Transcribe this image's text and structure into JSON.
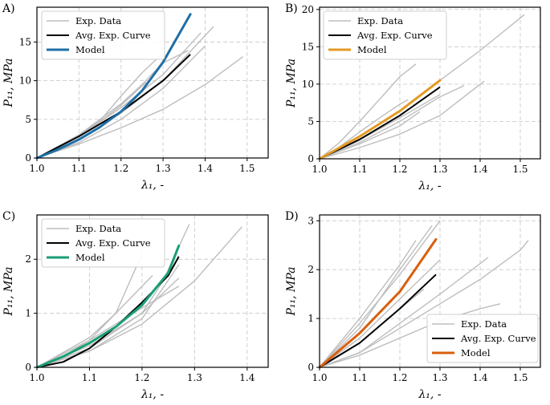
{
  "chart_data": [
    {
      "type": "line",
      "panel_label": "A)",
      "xlabel": "λ₁, -",
      "ylabel": "P₁₁, MPa",
      "xlim": [
        1.0,
        1.55
      ],
      "ylim": [
        0,
        19.5
      ],
      "xticks": [
        1.0,
        1.1,
        1.2,
        1.3,
        1.4,
        1.5
      ],
      "xtick_labels": [
        "1.0",
        "1.1",
        "1.2",
        "1.3",
        "1.4",
        "1.5"
      ],
      "yticks": [
        0,
        5,
        10,
        15
      ],
      "ytick_labels": [
        "0",
        "5",
        "10",
        "15"
      ],
      "grid": true,
      "legend_position": "top-left",
      "legend": [
        "Exp. Data",
        "Avg. Exp. Curve",
        "Model"
      ],
      "colors": {
        "exp": "#bdbdbd",
        "avg": "#000000",
        "model": "#1f6fa6"
      },
      "exp_series": [
        {
          "x": [
            1.0,
            1.1,
            1.2,
            1.3,
            1.4,
            1.49
          ],
          "y": [
            0,
            1.8,
            3.9,
            6.3,
            9.5,
            13.1
          ]
        },
        {
          "x": [
            1.0,
            1.1,
            1.2,
            1.3,
            1.42
          ],
          "y": [
            0,
            2.4,
            5.8,
            10.0,
            17.0
          ]
        },
        {
          "x": [
            1.0,
            1.1,
            1.2,
            1.3,
            1.39
          ],
          "y": [
            0,
            2.8,
            6.5,
            10.8,
            16.2
          ]
        },
        {
          "x": [
            1.0,
            1.08,
            1.15,
            1.2,
            1.25,
            1.3
          ],
          "y": [
            0,
            2.2,
            4.8,
            8.0,
            11.0,
            13.6
          ]
        },
        {
          "x": [
            1.0,
            1.1,
            1.2,
            1.25,
            1.3,
            1.36
          ],
          "y": [
            0,
            3.0,
            7.0,
            9.5,
            12.3,
            13.9
          ]
        },
        {
          "x": [
            1.0,
            1.05,
            1.1,
            1.15,
            1.2,
            1.26
          ],
          "y": [
            0,
            1.4,
            2.9,
            4.7,
            6.8,
            9.8
          ]
        },
        {
          "x": [
            1.0,
            1.1,
            1.2,
            1.3,
            1.4
          ],
          "y": [
            0,
            2.0,
            5.0,
            9.0,
            14.5
          ]
        }
      ],
      "avg_series": {
        "x": [
          1.0,
          1.1,
          1.2,
          1.3,
          1.365
        ],
        "y": [
          0,
          2.8,
          6.0,
          10.0,
          13.4
        ]
      },
      "model_series": {
        "x": [
          1.0,
          1.05,
          1.1,
          1.15,
          1.2,
          1.25,
          1.3,
          1.365
        ],
        "y": [
          0,
          1.1,
          2.4,
          4.0,
          6.0,
          8.7,
          12.4,
          18.6
        ]
      }
    },
    {
      "type": "line",
      "panel_label": "B)",
      "xlabel": "λ₁, -",
      "ylabel": "P₁₁, MPa",
      "xlim": [
        1.0,
        1.55
      ],
      "ylim": [
        0,
        20.3
      ],
      "xticks": [
        1.0,
        1.1,
        1.2,
        1.3,
        1.4,
        1.5
      ],
      "xtick_labels": [
        "1.0",
        "1.1",
        "1.2",
        "1.3",
        "1.4",
        "1.5"
      ],
      "yticks": [
        0,
        5,
        10,
        15,
        20
      ],
      "ytick_labels": [
        "0",
        "5",
        "10",
        "15",
        "20"
      ],
      "grid": true,
      "legend_position": "top-left",
      "legend": [
        "Exp. Data",
        "Avg. Exp. Curve",
        "Model"
      ],
      "colors": {
        "exp": "#bdbdbd",
        "avg": "#000000",
        "model": "#e39a25"
      },
      "exp_series": [
        {
          "x": [
            1.0,
            1.1,
            1.2,
            1.3,
            1.4,
            1.51
          ],
          "y": [
            0,
            3.0,
            6.5,
            10.5,
            14.5,
            19.3
          ]
        },
        {
          "x": [
            1.0,
            1.05,
            1.1,
            1.15,
            1.2,
            1.24
          ],
          "y": [
            0,
            2.2,
            5.0,
            8.0,
            11.0,
            12.7
          ]
        },
        {
          "x": [
            1.0,
            1.1,
            1.2,
            1.3,
            1.36
          ],
          "y": [
            0,
            2.2,
            5.0,
            8.3,
            9.8
          ]
        },
        {
          "x": [
            1.0,
            1.1,
            1.2,
            1.3,
            1.41
          ],
          "y": [
            0,
            1.5,
            3.3,
            5.8,
            10.4
          ]
        },
        {
          "x": [
            1.0,
            1.1,
            1.2,
            1.3
          ],
          "y": [
            0,
            2.5,
            5.5,
            8.6
          ]
        },
        {
          "x": [
            1.0,
            1.05,
            1.1,
            1.15,
            1.2,
            1.22
          ],
          "y": [
            0,
            1.6,
            3.6,
            5.5,
            7.3,
            7.9
          ]
        },
        {
          "x": [
            1.0,
            1.1,
            1.2,
            1.25
          ],
          "y": [
            0,
            2.0,
            4.4,
            6.3
          ]
        }
      ],
      "avg_series": {
        "x": [
          1.0,
          1.1,
          1.2,
          1.3
        ],
        "y": [
          0,
          2.6,
          5.8,
          9.6
        ]
      },
      "model_series": {
        "x": [
          1.0,
          1.1,
          1.2,
          1.3
        ],
        "y": [
          0,
          3.0,
          6.4,
          10.5
        ]
      }
    },
    {
      "type": "line",
      "panel_label": "C)",
      "xlabel": "λ₁, -",
      "ylabel": "P₁₁, MPa",
      "xlim": [
        1.0,
        1.44
      ],
      "ylim": [
        0,
        2.82
      ],
      "xticks": [
        1.0,
        1.1,
        1.2,
        1.3,
        1.4
      ],
      "xtick_labels": [
        "1.0",
        "1.1",
        "1.2",
        "1.3",
        "1.4"
      ],
      "yticks": [
        0,
        1,
        2
      ],
      "ytick_labels": [
        "0",
        "1",
        "2"
      ],
      "grid": true,
      "legend_position": "top-left",
      "legend": [
        "Exp. Data",
        "Avg. Exp. Curve",
        "Model"
      ],
      "colors": {
        "exp": "#bdbdbd",
        "avg": "#000000",
        "model": "#1a9e77"
      },
      "exp_series": [
        {
          "x": [
            1.0,
            1.1,
            1.2,
            1.3,
            1.39
          ],
          "y": [
            0,
            0.3,
            0.8,
            1.6,
            2.6
          ]
        },
        {
          "x": [
            1.0,
            1.1,
            1.2,
            1.24,
            1.29
          ],
          "y": [
            0,
            0.35,
            1.0,
            1.6,
            2.65
          ]
        },
        {
          "x": [
            1.0,
            1.05,
            1.1,
            1.15,
            1.2
          ],
          "y": [
            0,
            0.2,
            0.5,
            1.0,
            2.1
          ]
        },
        {
          "x": [
            1.0,
            1.1,
            1.2,
            1.27
          ],
          "y": [
            0,
            0.5,
            1.1,
            1.5
          ]
        },
        {
          "x": [
            1.0,
            1.1,
            1.2,
            1.27
          ],
          "y": [
            0,
            0.4,
            1.0,
            1.65
          ]
        },
        {
          "x": [
            1.0,
            1.1,
            1.15,
            1.22
          ],
          "y": [
            0,
            0.55,
            1.0,
            1.7
          ]
        },
        {
          "x": [
            1.0,
            1.1,
            1.2,
            1.27
          ],
          "y": [
            0,
            0.3,
            0.9,
            1.9
          ]
        }
      ],
      "avg_series": {
        "x": [
          1.0,
          1.05,
          1.1,
          1.15,
          1.2,
          1.25,
          1.27
        ],
        "y": [
          0,
          0.1,
          0.35,
          0.75,
          1.2,
          1.7,
          2.05
        ]
      },
      "model_series": {
        "x": [
          1.0,
          1.05,
          1.1,
          1.15,
          1.2,
          1.25,
          1.27
        ],
        "y": [
          0,
          0.2,
          0.45,
          0.75,
          1.15,
          1.75,
          2.25
        ]
      }
    },
    {
      "type": "line",
      "panel_label": "D)",
      "xlabel": "λ₁, -",
      "ylabel": "P₁₁, MPa",
      "xlim": [
        1.0,
        1.55
      ],
      "ylim": [
        0,
        3.12
      ],
      "xticks": [
        1.0,
        1.1,
        1.2,
        1.3,
        1.4,
        1.5
      ],
      "xtick_labels": [
        "1.0",
        "1.1",
        "1.2",
        "1.3",
        "1.4",
        "1.5"
      ],
      "yticks": [
        0,
        1,
        2,
        3
      ],
      "ytick_labels": [
        "0",
        "1",
        "2",
        "3"
      ],
      "grid": true,
      "legend_position": "bottom-right",
      "legend": [
        "Exp. Data",
        "Avg. Exp. Curve",
        "Model"
      ],
      "colors": {
        "exp": "#bdbdbd",
        "avg": "#000000",
        "model": "#d95f0e"
      },
      "exp_series": [
        {
          "x": [
            1.0,
            1.1,
            1.2,
            1.3,
            1.4,
            1.5,
            1.52
          ],
          "y": [
            0,
            0.3,
            0.8,
            1.3,
            1.8,
            2.4,
            2.6
          ]
        },
        {
          "x": [
            1.0,
            1.1,
            1.2,
            1.3,
            1.4,
            1.45
          ],
          "y": [
            0,
            0.25,
            0.6,
            0.95,
            1.2,
            1.3
          ]
        },
        {
          "x": [
            1.0,
            1.1,
            1.2,
            1.3
          ],
          "y": [
            0,
            0.9,
            1.9,
            3.0
          ]
        },
        {
          "x": [
            1.0,
            1.1,
            1.2,
            1.28
          ],
          "y": [
            0,
            0.8,
            2.0,
            2.9
          ]
        },
        {
          "x": [
            1.0,
            1.1,
            1.2,
            1.24
          ],
          "y": [
            0,
            1.0,
            2.1,
            2.6
          ]
        },
        {
          "x": [
            1.0,
            1.1,
            1.2,
            1.3
          ],
          "y": [
            0,
            0.6,
            1.4,
            2.2
          ]
        },
        {
          "x": [
            1.0,
            1.1,
            1.2,
            1.3,
            1.42
          ],
          "y": [
            0,
            0.3,
            0.9,
            1.5,
            2.25
          ]
        },
        {
          "x": [
            1.0,
            1.1,
            1.2,
            1.26
          ],
          "y": [
            0,
            0.5,
            1.2,
            1.6
          ]
        }
      ],
      "avg_series": {
        "x": [
          1.0,
          1.1,
          1.2,
          1.29
        ],
        "y": [
          0,
          0.5,
          1.2,
          1.9
        ]
      },
      "model_series": {
        "x": [
          1.0,
          1.1,
          1.2,
          1.29
        ],
        "y": [
          0,
          0.7,
          1.55,
          2.62
        ]
      }
    }
  ]
}
